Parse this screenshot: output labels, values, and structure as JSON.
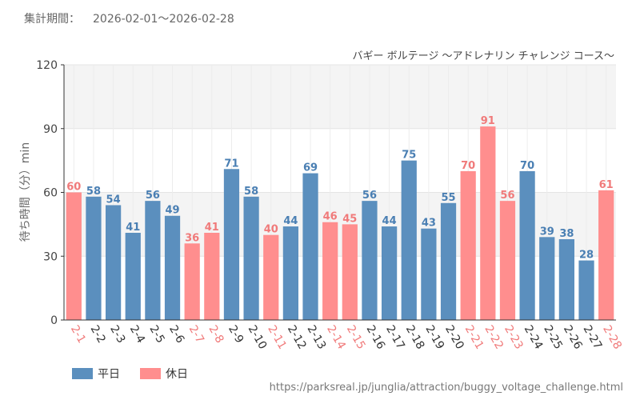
{
  "header": {
    "period_label": "集計期間：",
    "period_range": "2026-02-01～2026-02-28"
  },
  "colors": {
    "weekday": "#5b8fbe",
    "holiday": "#ff8e8e",
    "weekday_text": "#4a7fb3",
    "holiday_text": "#f07a7a",
    "grid_band": "#f4f4f4"
  },
  "legend": {
    "weekday_label": "平日",
    "holiday_label": "休日"
  },
  "source": "https://parksreal.jp/junglia/attraction/buggy_voltage_challenge.html",
  "chart_data": {
    "type": "bar",
    "title": "バギー ボルテージ ～アドレナリン チャレンジ コース～",
    "xlabel": "",
    "ylabel": "待ち時間（分）min",
    "ylim": [
      0,
      120
    ],
    "yticks": [
      0,
      30,
      60,
      90,
      120
    ],
    "categories": [
      "2-1",
      "2-2",
      "2-3",
      "2-4",
      "2-5",
      "2-6",
      "2-7",
      "2-8",
      "2-9",
      "2-10",
      "2-11",
      "2-12",
      "2-13",
      "2-14",
      "2-15",
      "2-16",
      "2-17",
      "2-18",
      "2-19",
      "2-20",
      "2-21",
      "2-22",
      "2-23",
      "2-24",
      "2-25",
      "2-26",
      "2-27",
      "2-28"
    ],
    "values": [
      60,
      58,
      54,
      41,
      56,
      49,
      36,
      41,
      71,
      58,
      40,
      44,
      69,
      46,
      45,
      56,
      44,
      75,
      43,
      55,
      70,
      91,
      56,
      70,
      39,
      38,
      28,
      61
    ],
    "day_type": [
      "holiday",
      "weekday",
      "weekday",
      "weekday",
      "weekday",
      "weekday",
      "holiday",
      "holiday",
      "weekday",
      "weekday",
      "holiday",
      "weekday",
      "weekday",
      "holiday",
      "holiday",
      "weekday",
      "weekday",
      "weekday",
      "weekday",
      "weekday",
      "holiday",
      "holiday",
      "holiday",
      "weekday",
      "weekday",
      "weekday",
      "weekday",
      "holiday"
    ],
    "series": [
      {
        "name": "平日",
        "key": "weekday"
      },
      {
        "name": "休日",
        "key": "holiday"
      }
    ],
    "grid": true,
    "legend_position": "bottom-left"
  }
}
